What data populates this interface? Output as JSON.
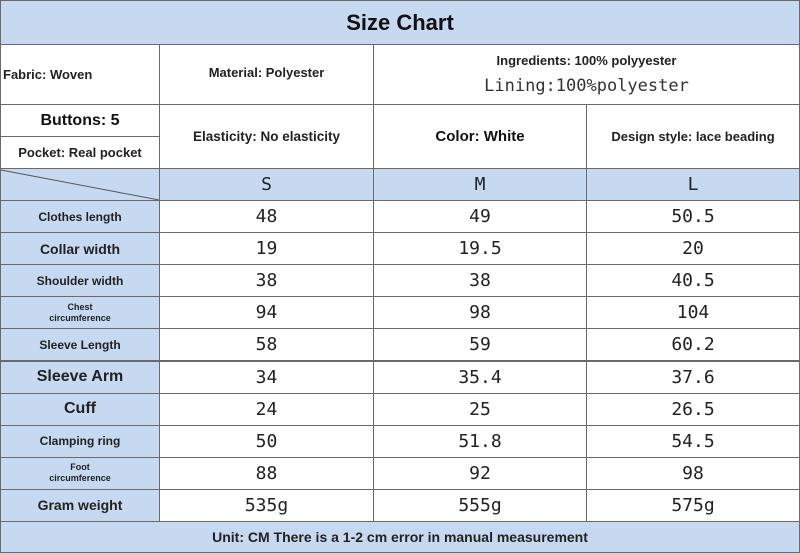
{
  "title": "Size Chart",
  "info": {
    "fabric": "Fabric: Woven",
    "material": "Material: Polyester",
    "ingredients": "Ingredients: 100% polyyester",
    "lining": "Lining:100%polyester",
    "buttons": "Buttons: 5",
    "pocket": "Pocket: Real pocket",
    "elasticity": "Elasticity: No elasticity",
    "color": "Color: White",
    "design_style": "Design style: lace beading"
  },
  "sizes": [
    "S",
    "M",
    "L"
  ],
  "rows": [
    {
      "label": "Clothes length",
      "values": [
        "48",
        "49",
        "50.5"
      ]
    },
    {
      "label": "Collar width",
      "values": [
        "19",
        "19.5",
        "20"
      ]
    },
    {
      "label": "Shoulder width",
      "values": [
        "38",
        "38",
        "40.5"
      ]
    },
    {
      "label_lines": [
        "Chest",
        "circumference"
      ],
      "values": [
        "94",
        "98",
        "104"
      ]
    },
    {
      "label": "Sleeve Length",
      "values": [
        "58",
        "59",
        "60.2"
      ]
    },
    {
      "label": "Sleeve Arm",
      "values": [
        "34",
        "35.4",
        "37.6"
      ]
    },
    {
      "label": "Cuff",
      "values": [
        "24",
        "25",
        "26.5"
      ]
    },
    {
      "label": "Clamping ring",
      "values": [
        "50",
        "51.8",
        "54.5"
      ]
    },
    {
      "label_lines": [
        "Foot",
        "circumference"
      ],
      "values": [
        "88",
        "92",
        "98"
      ]
    },
    {
      "label": "Gram weight",
      "values": [
        "535g",
        "555g",
        "575g"
      ]
    }
  ],
  "footer": "Unit: CM There is a 1-2 cm error in manual measurement",
  "colors": {
    "header_blue": "#c6d9f0",
    "border": "#6a6a6a"
  }
}
